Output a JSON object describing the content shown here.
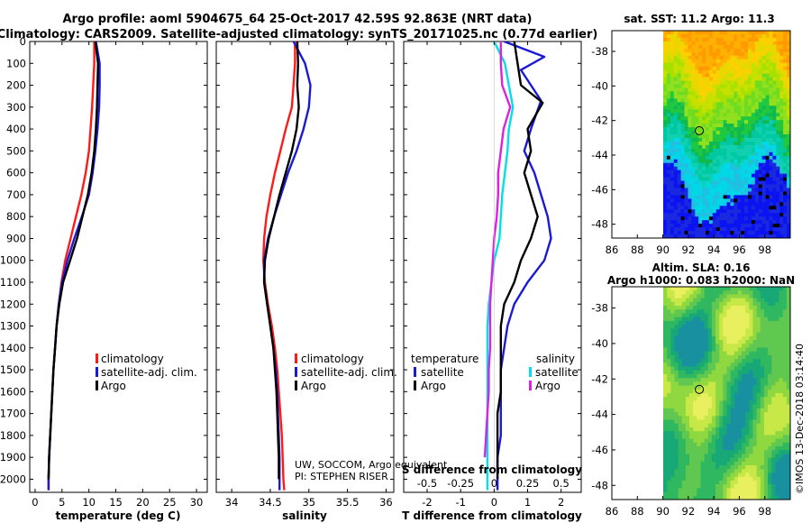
{
  "title": {
    "line1": "Argo profile: aoml 5904675_64 25-Oct-2017 42.59S 92.863E (NRT data)",
    "line2": "Climatology: CARS2009. Satellite-adjusted climatology: synTS_20171025.nc (0.77d earlier)"
  },
  "colors": {
    "climatology": "#ff1a1a",
    "satellite": "#1a1ad6",
    "argo": "#000000",
    "satellite_salinity": "#00e0e8",
    "argo_salinity": "#e020e0"
  },
  "credits": {
    "line1": "UW, SOCCOM, Argo equivalent",
    "line2": "PI: STEPHEN RISER"
  },
  "imos_stamp": "©IMOS 13-Dec-2018 03:14:40",
  "chart_data": [
    {
      "type": "line",
      "id": "temperature",
      "xlabel": "temperature (deg C)",
      "xlim": [
        -1,
        32
      ],
      "ylim": [
        2060,
        0
      ],
      "xticks": [
        "0",
        "5",
        "10",
        "15",
        "20",
        "25",
        "30"
      ],
      "xtick_values": [
        0,
        5,
        10,
        15,
        20,
        25,
        30
      ],
      "yticks": [
        "0",
        "100",
        "200",
        "300",
        "400",
        "500",
        "600",
        "700",
        "800",
        "900",
        "1000",
        "1100",
        "1200",
        "1300",
        "1400",
        "1500",
        "1600",
        "1700",
        "1800",
        "1900",
        "2000"
      ],
      "ytick_values": [
        0,
        100,
        200,
        300,
        400,
        500,
        600,
        700,
        800,
        900,
        1000,
        1100,
        1200,
        1300,
        1400,
        1500,
        1600,
        1700,
        1800,
        1900,
        2000
      ],
      "legend": [
        "climatology",
        "satellite-adj. clim.",
        "Argo"
      ],
      "series": [
        {
          "name": "climatology",
          "color": "#ff1a1a",
          "x": [
            11.0,
            11.0,
            10.8,
            10.6,
            10.3,
            10.0,
            9.4,
            8.6,
            7.6,
            6.6,
            5.6,
            4.9,
            4.4,
            4.0,
            3.7,
            3.4,
            3.2,
            3.0,
            2.8,
            2.6,
            2.5,
            2.5
          ],
          "y": [
            0,
            100,
            200,
            300,
            400,
            500,
            600,
            700,
            800,
            900,
            1000,
            1100,
            1200,
            1300,
            1400,
            1500,
            1600,
            1700,
            1800,
            1900,
            2000,
            2050
          ]
        },
        {
          "name": "satellite-adj. clim.",
          "color": "#1a1ad6",
          "x": [
            11.3,
            12.0,
            12.0,
            11.9,
            11.6,
            11.2,
            10.7,
            10.0,
            8.7,
            7.3,
            6.0,
            5.0,
            4.4,
            4.0,
            3.7,
            3.4,
            3.2,
            3.0,
            2.8,
            2.6,
            2.5,
            2.5
          ],
          "y": [
            0,
            100,
            200,
            300,
            400,
            500,
            600,
            700,
            800,
            900,
            1000,
            1100,
            1200,
            1300,
            1400,
            1500,
            1600,
            1700,
            1800,
            1900,
            2000,
            2050
          ]
        },
        {
          "name": "Argo",
          "color": "#000000",
          "x": [
            11.2,
            11.7,
            11.6,
            11.5,
            11.3,
            11.0,
            10.5,
            9.8,
            8.8,
            7.8,
            6.5,
            5.2,
            4.5,
            4.0,
            3.7,
            3.4,
            3.2,
            3.0,
            2.8,
            2.6,
            2.5
          ],
          "y": [
            0,
            100,
            200,
            300,
            400,
            500,
            600,
            700,
            800,
            900,
            1000,
            1100,
            1200,
            1300,
            1400,
            1500,
            1600,
            1700,
            1800,
            1900,
            2000
          ]
        }
      ]
    },
    {
      "type": "line",
      "id": "salinity",
      "xlabel": "salinity",
      "xlim": [
        33.8,
        36.1
      ],
      "ylim": [
        2060,
        0
      ],
      "xticks": [
        "34",
        "34.5",
        "35",
        "35.5",
        "36"
      ],
      "xtick_values": [
        34,
        34.5,
        35,
        35.5,
        36
      ],
      "legend": [
        "climatology",
        "satellite-adj. clim.",
        "Argo"
      ],
      "series": [
        {
          "name": "climatology",
          "color": "#ff1a1a",
          "x": [
            34.82,
            34.82,
            34.8,
            34.78,
            34.7,
            34.63,
            34.56,
            34.5,
            34.45,
            34.42,
            34.41,
            34.43,
            34.47,
            34.52,
            34.56,
            34.59,
            34.61,
            34.63,
            34.65,
            34.66,
            34.67,
            34.68
          ],
          "y": [
            0,
            100,
            200,
            300,
            400,
            500,
            600,
            700,
            800,
            900,
            1000,
            1100,
            1200,
            1300,
            1400,
            1500,
            1600,
            1700,
            1800,
            1900,
            2000,
            2050
          ]
        },
        {
          "name": "satellite-adj. clim.",
          "color": "#1a1ad6",
          "x": [
            34.8,
            34.95,
            35.02,
            35.0,
            34.93,
            34.84,
            34.73,
            34.64,
            34.55,
            34.47,
            34.42,
            34.42,
            34.46,
            34.5,
            34.54,
            34.57,
            34.59,
            34.6,
            34.61,
            34.62,
            34.62,
            34.62
          ],
          "y": [
            0,
            100,
            200,
            300,
            400,
            500,
            600,
            700,
            800,
            900,
            1000,
            1100,
            1200,
            1300,
            1400,
            1500,
            1600,
            1700,
            1800,
            1900,
            2000,
            2050
          ]
        },
        {
          "name": "Argo",
          "color": "#000000",
          "x": [
            34.85,
            34.86,
            34.85,
            34.87,
            34.84,
            34.78,
            34.7,
            34.62,
            34.55,
            34.48,
            34.43,
            34.42,
            34.46,
            34.5,
            34.54,
            34.56,
            34.58,
            34.59,
            34.6,
            34.61,
            34.61
          ],
          "y": [
            0,
            100,
            200,
            300,
            400,
            500,
            600,
            700,
            800,
            900,
            1000,
            1100,
            1200,
            1300,
            1400,
            1500,
            1600,
            1700,
            1800,
            1900,
            2000
          ]
        }
      ]
    },
    {
      "type": "line",
      "id": "difference",
      "xlabel": "T difference from climatology",
      "xlabel_top": "S difference from climatology",
      "xlim": [
        -2.7,
        2.6
      ],
      "ylim": [
        2060,
        0
      ],
      "xticks": [
        "-2",
        "-1",
        "0",
        "1",
        "2"
      ],
      "xtick_values": [
        -2,
        -1,
        0,
        1,
        2
      ],
      "sticks": [
        "-0.5",
        "-0.25",
        "0",
        "0.25",
        "0.5"
      ],
      "stick_values": [
        -0.5,
        -0.25,
        0,
        0.25,
        0.5
      ],
      "legend_temperature_title": "temperature",
      "legend_salinity_title": "salinity",
      "legend_temperature": [
        "satellite",
        "Argo"
      ],
      "legend_salinity": [
        "satellite",
        "Argo"
      ],
      "series": [
        {
          "name": "T satellite",
          "color": "#1a1ad6",
          "x": [
            0.3,
            1.5,
            0.8,
            1.4,
            1.1,
            0.9,
            1.2,
            1.4,
            1.6,
            1.7,
            1.5,
            1.0,
            0.6,
            0.4,
            0.3,
            0.2,
            0.2,
            0.2,
            0.2,
            0.1,
            0.1,
            0.1
          ],
          "y": [
            0,
            70,
            130,
            270,
            400,
            500,
            600,
            700,
            800,
            900,
            1000,
            1100,
            1200,
            1300,
            1400,
            1500,
            1600,
            1700,
            1800,
            1900,
            2000,
            2050
          ]
        },
        {
          "name": "T Argo",
          "color": "#000000",
          "x": [
            0.6,
            0.7,
            0.8,
            1.45,
            1.0,
            1.1,
            0.9,
            1.1,
            1.3,
            1.1,
            0.8,
            0.6,
            0.3,
            0.2,
            0.2,
            0.2,
            0.2,
            0.1,
            0.1,
            0.1,
            0.1
          ],
          "y": [
            0,
            100,
            200,
            280,
            400,
            500,
            600,
            700,
            800,
            900,
            1000,
            1100,
            1200,
            1300,
            1400,
            1500,
            1600,
            1700,
            1800,
            1900,
            2000
          ]
        },
        {
          "name": "S satellite",
          "color": "#00e0e8",
          "x": [
            0.0,
            0.08,
            0.11,
            0.14,
            0.11,
            0.1,
            0.08,
            0.06,
            0.05,
            0.04,
            0.0,
            -0.02,
            -0.04,
            -0.05,
            -0.05,
            -0.05,
            -0.05,
            -0.05,
            -0.05,
            -0.05,
            -0.05,
            -0.05
          ],
          "y": [
            0,
            100,
            200,
            300,
            400,
            500,
            600,
            700,
            800,
            900,
            1000,
            1100,
            1200,
            1300,
            1400,
            1500,
            1600,
            1700,
            1800,
            1900,
            2000,
            2050
          ]
        },
        {
          "name": "S Argo",
          "color": "#e020e0",
          "x": [
            0.05,
            0.05,
            0.06,
            0.12,
            0.07,
            0.05,
            0.03,
            0.03,
            0.02,
            0.0,
            -0.01,
            -0.02,
            -0.03,
            -0.03,
            -0.03,
            -0.04,
            -0.04,
            -0.05,
            -0.06,
            -0.07
          ],
          "y": [
            0,
            100,
            200,
            300,
            400,
            500,
            600,
            700,
            800,
            900,
            1000,
            1100,
            1200,
            1300,
            1400,
            1500,
            1600,
            1700,
            1800,
            1900
          ]
        }
      ]
    },
    {
      "type": "heatmap",
      "id": "sst_map",
      "title": "sat. SST: 11.2 Argo: 11.3",
      "xlim": [
        86,
        100
      ],
      "ylim": [
        -48.8,
        -36.8
      ],
      "xticks": [
        "86",
        "88",
        "90",
        "92",
        "94",
        "96",
        "98"
      ],
      "xtick_values": [
        86,
        88,
        90,
        92,
        94,
        96,
        98
      ],
      "yticks": [
        "-38",
        "-40",
        "-42",
        "-44",
        "-46",
        "-48"
      ],
      "ytick_values": [
        -38,
        -40,
        -42,
        -44,
        -46,
        -48
      ],
      "data_lon_range": [
        90,
        100
      ],
      "argo_position": [
        92.863,
        -42.59
      ]
    },
    {
      "type": "heatmap",
      "id": "sla_map",
      "title_line1": "Altim. SLA: 0.16",
      "title_line2": "Argo h1000: 0.083 h2000: NaN",
      "xlim": [
        86,
        100
      ],
      "ylim": [
        -48.8,
        -36.8
      ],
      "xticks": [
        "86",
        "88",
        "90",
        "92",
        "94",
        "96",
        "98"
      ],
      "xtick_values": [
        86,
        88,
        90,
        92,
        94,
        96,
        98
      ],
      "yticks": [
        "-38",
        "-40",
        "-42",
        "-44",
        "-46",
        "-48"
      ],
      "ytick_values": [
        -38,
        -40,
        -42,
        -44,
        -46,
        -48
      ],
      "data_lon_range": [
        90,
        100
      ],
      "argo_position": [
        92.863,
        -42.59
      ]
    }
  ]
}
